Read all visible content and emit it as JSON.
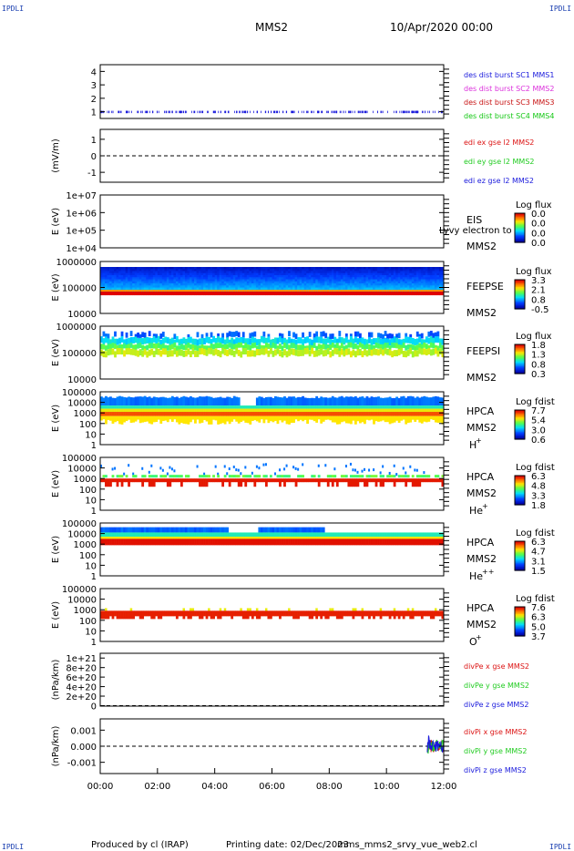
{
  "corner_label": "IPDLI",
  "header": {
    "spacecraft": "MMS2",
    "datetime": "10/Apr/2020 00:00"
  },
  "footer": {
    "produced_by": "Produced by cl (IRAP)",
    "printing_date": "Printing date: 02/Dec/2023",
    "script": "mms_mms2_srvy_vue_web2.cl"
  },
  "colors": {
    "mms1": "#1a1adc",
    "mms2": "#dc32dc",
    "mms3": "#c81414",
    "mms4": "#14c814",
    "x": "#dc1414",
    "y": "#22cc22",
    "z": "#1a1adc"
  },
  "chart_data": [
    {
      "type": "line",
      "ylim": [
        0.5,
        4.5
      ],
      "yticks": [
        "1",
        "2",
        "3",
        "4"
      ],
      "legend": [
        {
          "text": "des dist burst SC1 MMS1",
          "color": "#1a1adc"
        },
        {
          "text": "des dist burst SC2 MMS2",
          "color": "#dc32dc"
        },
        {
          "text": "des dist burst SC3 MMS3",
          "color": "#c81414"
        },
        {
          "text": "des dist burst SC4 MMS4",
          "color": "#14c814"
        }
      ],
      "series": [
        {
          "values_level": 1,
          "interval": [
            0,
            12
          ]
        }
      ]
    },
    {
      "type": "line",
      "ylabel": "(mV/m)",
      "ylim": [
        -1.6,
        1.6
      ],
      "yticks": [
        "1",
        "0",
        "-1"
      ],
      "legend": [
        {
          "text": "edi ex gse l2 MMS2",
          "color": "#dc1414"
        },
        {
          "text": "edi ey gse l2 MMS2",
          "color": "#22cc22"
        },
        {
          "text": "edi ez gse l2 MMS2",
          "color": "#1a1adc"
        }
      ]
    },
    {
      "type": "heatmap",
      "ylabel": "E (eV)",
      "yticks": [
        "1e+07",
        "1e+06",
        "1e+05",
        "1e+04"
      ],
      "instrument": "EIS",
      "spacecraft": "MMS2",
      "overlap_text": "Lyvy electron to",
      "colorbar": {
        "title": "Log flux",
        "ticks": [
          "0.0",
          "0.0",
          "0.0",
          "0.0"
        ]
      }
    },
    {
      "type": "heatmap",
      "ylabel": "E (eV)",
      "yticks": [
        "1000000",
        "100000",
        "10000"
      ],
      "instrument": "FEEPSE",
      "spacecraft": "MMS2",
      "colorbar": {
        "title": "Log flux",
        "ticks": [
          "3.3",
          "2.1",
          "0.8",
          "-0.5"
        ]
      }
    },
    {
      "type": "heatmap",
      "ylabel": "E (eV)",
      "yticks": [
        "1000000",
        "100000",
        "10000"
      ],
      "instrument": "FEEPSI",
      "spacecraft": "MMS2",
      "colorbar": {
        "title": "Log flux",
        "ticks": [
          "1.8",
          "1.3",
          "0.8",
          "0.3"
        ]
      }
    },
    {
      "type": "heatmap",
      "ylabel": "E (eV)",
      "yticks": [
        "100000",
        "10000",
        "1000",
        "100",
        "10",
        "1"
      ],
      "instrument": "HPCA",
      "spacecraft": "MMS2",
      "species": "H",
      "species_sup": "+",
      "colorbar": {
        "title": "Log fdist",
        "ticks": [
          "7.7",
          "5.4",
          "3.0",
          "0.6"
        ]
      }
    },
    {
      "type": "heatmap",
      "ylabel": "E (eV)",
      "yticks": [
        "100000",
        "10000",
        "1000",
        "100",
        "10",
        "1"
      ],
      "instrument": "HPCA",
      "spacecraft": "MMS2",
      "species": "He",
      "species_sup": "+",
      "colorbar": {
        "title": "Log fdist",
        "ticks": [
          "6.3",
          "4.8",
          "3.3",
          "1.8"
        ]
      }
    },
    {
      "type": "heatmap",
      "ylabel": "E (eV)",
      "yticks": [
        "100000",
        "10000",
        "1000",
        "100",
        "10",
        "1"
      ],
      "instrument": "HPCA",
      "spacecraft": "MMS2",
      "species": "He",
      "species_sup": "++",
      "colorbar": {
        "title": "Log fdist",
        "ticks": [
          "6.3",
          "4.7",
          "3.1",
          "1.5"
        ]
      }
    },
    {
      "type": "heatmap",
      "ylabel": "E (eV)",
      "yticks": [
        "100000",
        "10000",
        "1000",
        "100",
        "10",
        "1"
      ],
      "instrument": "HPCA",
      "spacecraft": "MMS2",
      "species": "O",
      "species_sup": "+",
      "colorbar": {
        "title": "Log fdist",
        "ticks": [
          "7.6",
          "6.3",
          "5.0",
          "3.7"
        ]
      }
    },
    {
      "type": "line",
      "ylabel": "(nPa/km)",
      "ylim": [
        -1e+19,
        1.1e+21
      ],
      "yticks": [
        "1e+21",
        "8e+20",
        "6e+20",
        "4e+20",
        "2e+20",
        "0"
      ],
      "legend": [
        {
          "text": "divPe x gse MMS2",
          "color": "#dc1414"
        },
        {
          "text": "divPe y gse MMS2",
          "color": "#22cc22"
        },
        {
          "text": "divPe z gse MMS2",
          "color": "#1a1adc"
        }
      ]
    },
    {
      "type": "line",
      "ylabel": "(nPa/km)",
      "ylim": [
        -0.0017,
        0.0017
      ],
      "yticks": [
        "0.001",
        "0.000",
        "-0.001"
      ],
      "legend": [
        {
          "text": "divPi x gse MMS2",
          "color": "#dc1414"
        },
        {
          "text": "divPi y gse MMS2",
          "color": "#22cc22"
        },
        {
          "text": "divPi z gse MMS2",
          "color": "#1a1adc"
        }
      ]
    }
  ],
  "xaxis": {
    "ticks": [
      "00:00",
      "02:00",
      "04:00",
      "06:00",
      "08:00",
      "10:00",
      "12:00"
    ]
  }
}
